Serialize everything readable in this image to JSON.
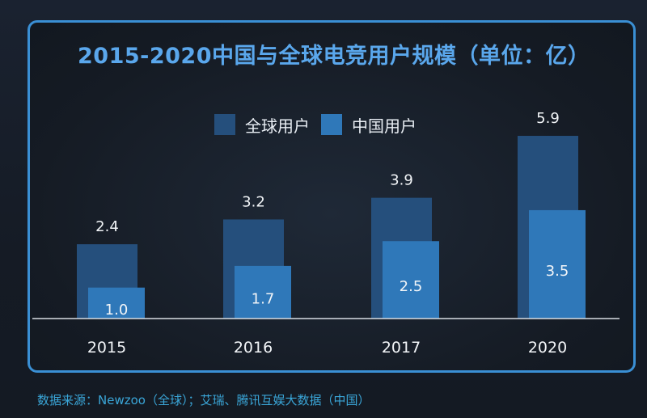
{
  "colors": {
    "page_bg": "#161d28",
    "panel_border": "#3a8fd4",
    "title": "#5aa7ec",
    "global_bar": "#254f7c",
    "china_bar": "#2f78b9",
    "baseline": "#d8dde3",
    "source_text": "#3aa6d8"
  },
  "chart_data": {
    "type": "bar",
    "title": "2015-2020中国与全球电竞用户规模（单位：亿）",
    "categories": [
      "2015",
      "2016",
      "2017",
      "2020"
    ],
    "series": [
      {
        "name": "全球用户",
        "values": [
          2.4,
          3.2,
          3.9,
          5.9
        ],
        "color": "#254f7c"
      },
      {
        "name": "中国用户",
        "values": [
          1.0,
          1.7,
          2.5,
          3.5
        ],
        "color": "#2f78b9"
      }
    ],
    "value_labels": {
      "global": [
        "2.4",
        "3.2",
        "3.9",
        "5.9"
      ],
      "china": [
        "1.0",
        "1.7",
        "2.5",
        "3.5"
      ]
    },
    "ylim": [
      0,
      6.5
    ],
    "grid": false,
    "legend_position": "top-center"
  },
  "source": "数据来源：Newzoo（全球）；艾瑞、腾讯互娱大数据（中国）"
}
